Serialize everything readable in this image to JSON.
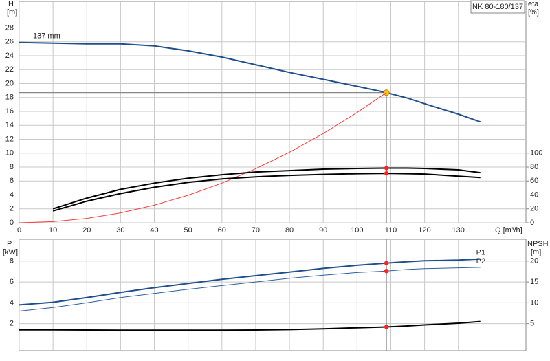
{
  "chart_data": [
    {
      "type": "line",
      "title": "NK 80-180/137",
      "x": [
        0,
        10,
        20,
        30,
        40,
        50,
        60,
        70,
        80,
        90,
        100,
        108.7,
        115,
        120,
        130,
        136.5
      ],
      "xlim": [
        0,
        150
      ],
      "xticks": [
        0,
        10,
        20,
        30,
        40,
        50,
        60,
        70,
        80,
        90,
        100,
        110,
        120,
        130
      ],
      "x_label": "Q [m³/h]",
      "y_label": "H",
      "y_unit": "[m]",
      "ylim": [
        0,
        31.8
      ],
      "yticks": [
        0,
        2,
        4,
        6,
        8,
        10,
        12,
        14,
        16,
        18,
        20,
        22,
        24,
        26,
        28
      ],
      "y2_label": "eta",
      "y2_unit": "[%]",
      "y2lim": [
        0,
        318
      ],
      "y2ticks": [
        0,
        20,
        40,
        60,
        80,
        100
      ],
      "grid": true,
      "series": [
        {
          "name": "137 mm",
          "color": "#1f4e8c",
          "values": [
            25.9,
            25.8,
            25.7,
            25.7,
            25.4,
            24.7,
            23.8,
            22.7,
            21.6,
            20.6,
            19.6,
            18.7,
            17.9,
            17.1,
            15.6,
            14.5
          ]
        },
        {
          "color": "#ff3b3b",
          "values": [
            0,
            0.16,
            0.63,
            1.42,
            2.53,
            3.96,
            5.7,
            7.76,
            10.13,
            12.82,
            15.83,
            18.7,
            null,
            null,
            null,
            null
          ]
        },
        {
          "color": "#000000",
          "axis": "y2",
          "values": [
            null,
            20,
            35.5,
            48,
            57,
            64,
            69,
            73,
            75,
            77,
            78,
            78.5,
            78.5,
            78,
            76,
            72
          ]
        },
        {
          "color": "#000000",
          "axis": "y2",
          "values": [
            null,
            17,
            31,
            42,
            51,
            58,
            63,
            66,
            68,
            69.5,
            70.5,
            71,
            70.5,
            70,
            67,
            65
          ]
        }
      ]
    },
    {
      "type": "line",
      "y_label": "P",
      "y_unit": "[kW]",
      "ylim": [
        -0.6,
        10.1
      ],
      "yticks": [
        2,
        4,
        6,
        8
      ],
      "y2_label": "NPSH",
      "y2_unit": "[m]",
      "y2lim": [
        -1.5,
        25.25
      ],
      "y2ticks": [
        5,
        10,
        15,
        20
      ],
      "grid": true,
      "series": [
        {
          "name": "P1",
          "color": "#1f4e8c",
          "values": [
            3.8,
            4.05,
            4.5,
            5.0,
            5.45,
            5.85,
            6.25,
            6.6,
            6.95,
            7.3,
            7.6,
            7.8,
            7.95,
            8.03,
            8.1,
            8.2
          ]
        },
        {
          "name": "P2",
          "color": "#2b5fa0",
          "values": [
            3.2,
            3.55,
            4.0,
            4.5,
            4.9,
            5.3,
            5.65,
            6.0,
            6.35,
            6.65,
            6.9,
            7.05,
            7.2,
            7.27,
            7.35,
            7.4
          ]
        },
        {
          "color": "#000000",
          "axis": "y2",
          "values": [
            3.5,
            3.5,
            3.45,
            3.4,
            3.4,
            3.4,
            3.4,
            3.45,
            3.55,
            3.75,
            4.0,
            4.2,
            4.45,
            4.7,
            5.1,
            5.5
          ]
        }
      ]
    }
  ]
}
